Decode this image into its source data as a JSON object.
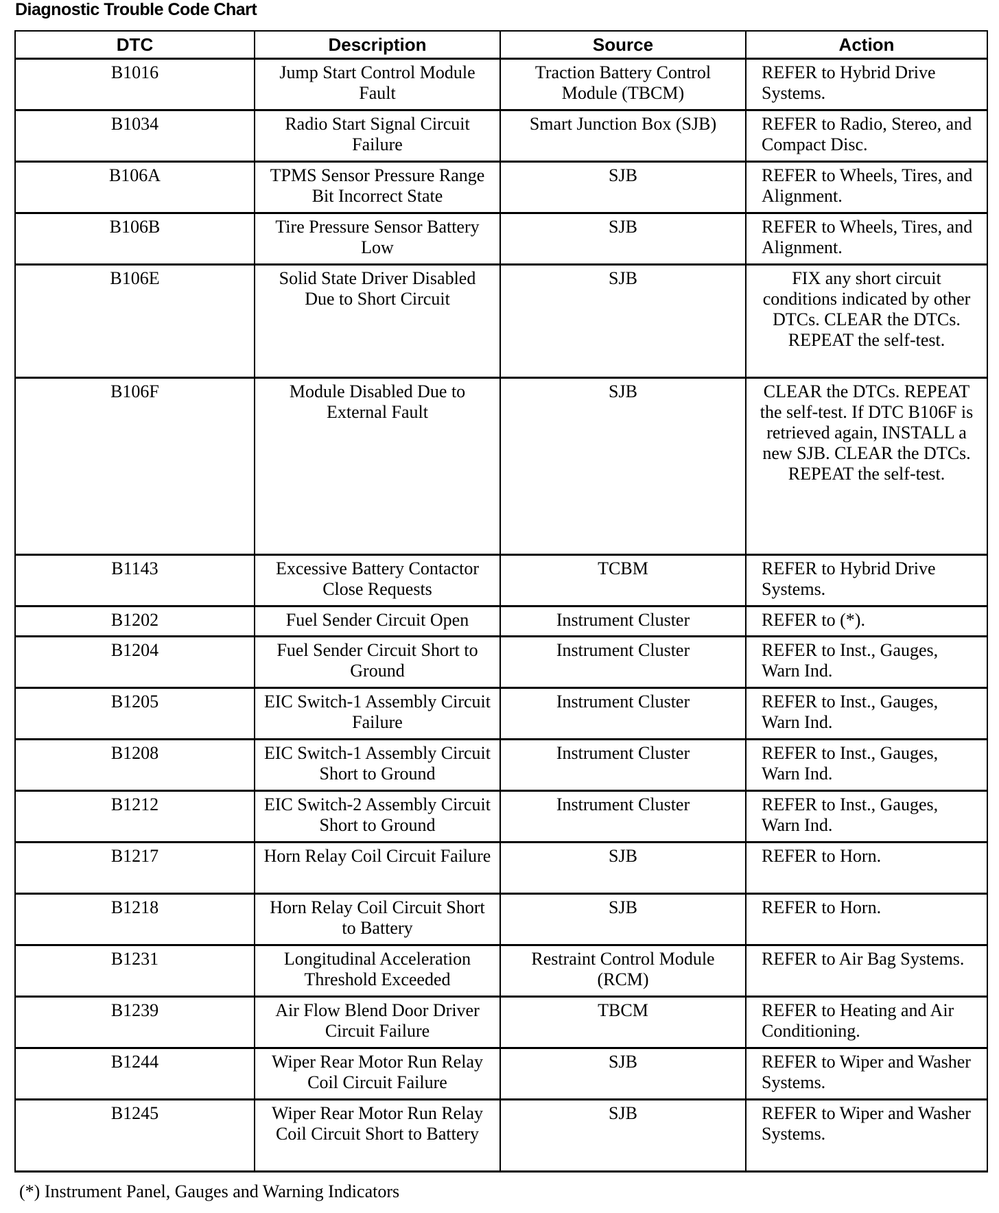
{
  "title": "Diagnostic Trouble Code Chart",
  "headers": [
    "DTC",
    "Description",
    "Source",
    "Action"
  ],
  "rows": [
    {
      "dtc": "B1016",
      "description": "Jump Start Control Module Fault",
      "source": "Traction Battery Control Module (TBCM)",
      "action": "REFER to Hybrid Drive Systems."
    },
    {
      "dtc": "B1034",
      "description": "Radio Start Signal Circuit Failure",
      "source": "Smart Junction Box (SJB)",
      "action": "REFER to Radio, Stereo, and Compact Disc."
    },
    {
      "dtc": "B106A",
      "description": "TPMS Sensor Pressure Range Bit Incorrect State",
      "source": "SJB",
      "action": "REFER to Wheels, Tires, and Alignment."
    },
    {
      "dtc": "B106B",
      "description": "Tire Pressure Sensor Battery Low",
      "source": "SJB",
      "action": "REFER to Wheels, Tires, and Alignment."
    },
    {
      "dtc": "B106E",
      "description": "Solid State Driver Disabled Due to Short Circuit",
      "source": "SJB",
      "action": "FIX any short circuit conditions indicated by other DTCs. CLEAR the DTCs. REPEAT the self-test."
    },
    {
      "dtc": "B106F",
      "description": "Module Disabled Due to External Fault",
      "source": "SJB",
      "action": "CLEAR the DTCs. REPEAT the self-test. If DTC B106F is retrieved again, INSTALL a new SJB. CLEAR the DTCs. REPEAT the self-test."
    },
    {
      "dtc": "B1143",
      "description": "Excessive Battery Contactor Close Requests",
      "source": "TCBM",
      "action": "REFER to Hybrid Drive Systems."
    },
    {
      "dtc": "B1202",
      "description": "Fuel Sender Circuit Open",
      "source": "Instrument Cluster",
      "action": "REFER to (*)."
    },
    {
      "dtc": "B1204",
      "description": "Fuel Sender Circuit Short to Ground",
      "source": "Instrument Cluster",
      "action": "REFER to Inst., Gauges, Warn Ind."
    },
    {
      "dtc": "B1205",
      "description": "EIC Switch-1 Assembly Circuit Failure",
      "source": "Instrument Cluster",
      "action": "REFER to Inst., Gauges, Warn Ind."
    },
    {
      "dtc": "B1208",
      "description": "EIC Switch-1 Assembly Circuit Short to Ground",
      "source": "Instrument Cluster",
      "action": "REFER to Inst., Gauges, Warn Ind."
    },
    {
      "dtc": "B1212",
      "description": "EIC Switch-2 Assembly Circuit Short to Ground",
      "source": "Instrument Cluster",
      "action": "REFER to Inst., Gauges, Warn Ind."
    },
    {
      "dtc": "B1217",
      "description": "Horn Relay Coil Circuit Failure",
      "source": "SJB",
      "action": "REFER to Horn."
    },
    {
      "dtc": "B1218",
      "description": "Horn Relay Coil Circuit Short to Battery",
      "source": "SJB",
      "action": "REFER to Horn."
    },
    {
      "dtc": "B1231",
      "description": "Longitudinal Acceleration Threshold Exceeded",
      "source": "Restraint Control Module (RCM)",
      "action": "REFER to Air Bag Systems."
    },
    {
      "dtc": "B1239",
      "description": "Air Flow Blend Door Driver Circuit Failure",
      "source": "TBCM",
      "action": "REFER to Heating and Air Conditioning."
    },
    {
      "dtc": "B1244",
      "description": "Wiper Rear Motor Run Relay Coil Circuit Failure",
      "source": "SJB",
      "action": "REFER to Wiper and Washer Systems."
    },
    {
      "dtc": "B1245",
      "description": "Wiper Rear Motor Run Relay Coil Circuit Short to Battery",
      "source": "SJB",
      "action": "REFER to Wiper and Washer Systems."
    }
  ],
  "footnote": "(*)  Instrument Panel, Gauges and Warning Indicators"
}
